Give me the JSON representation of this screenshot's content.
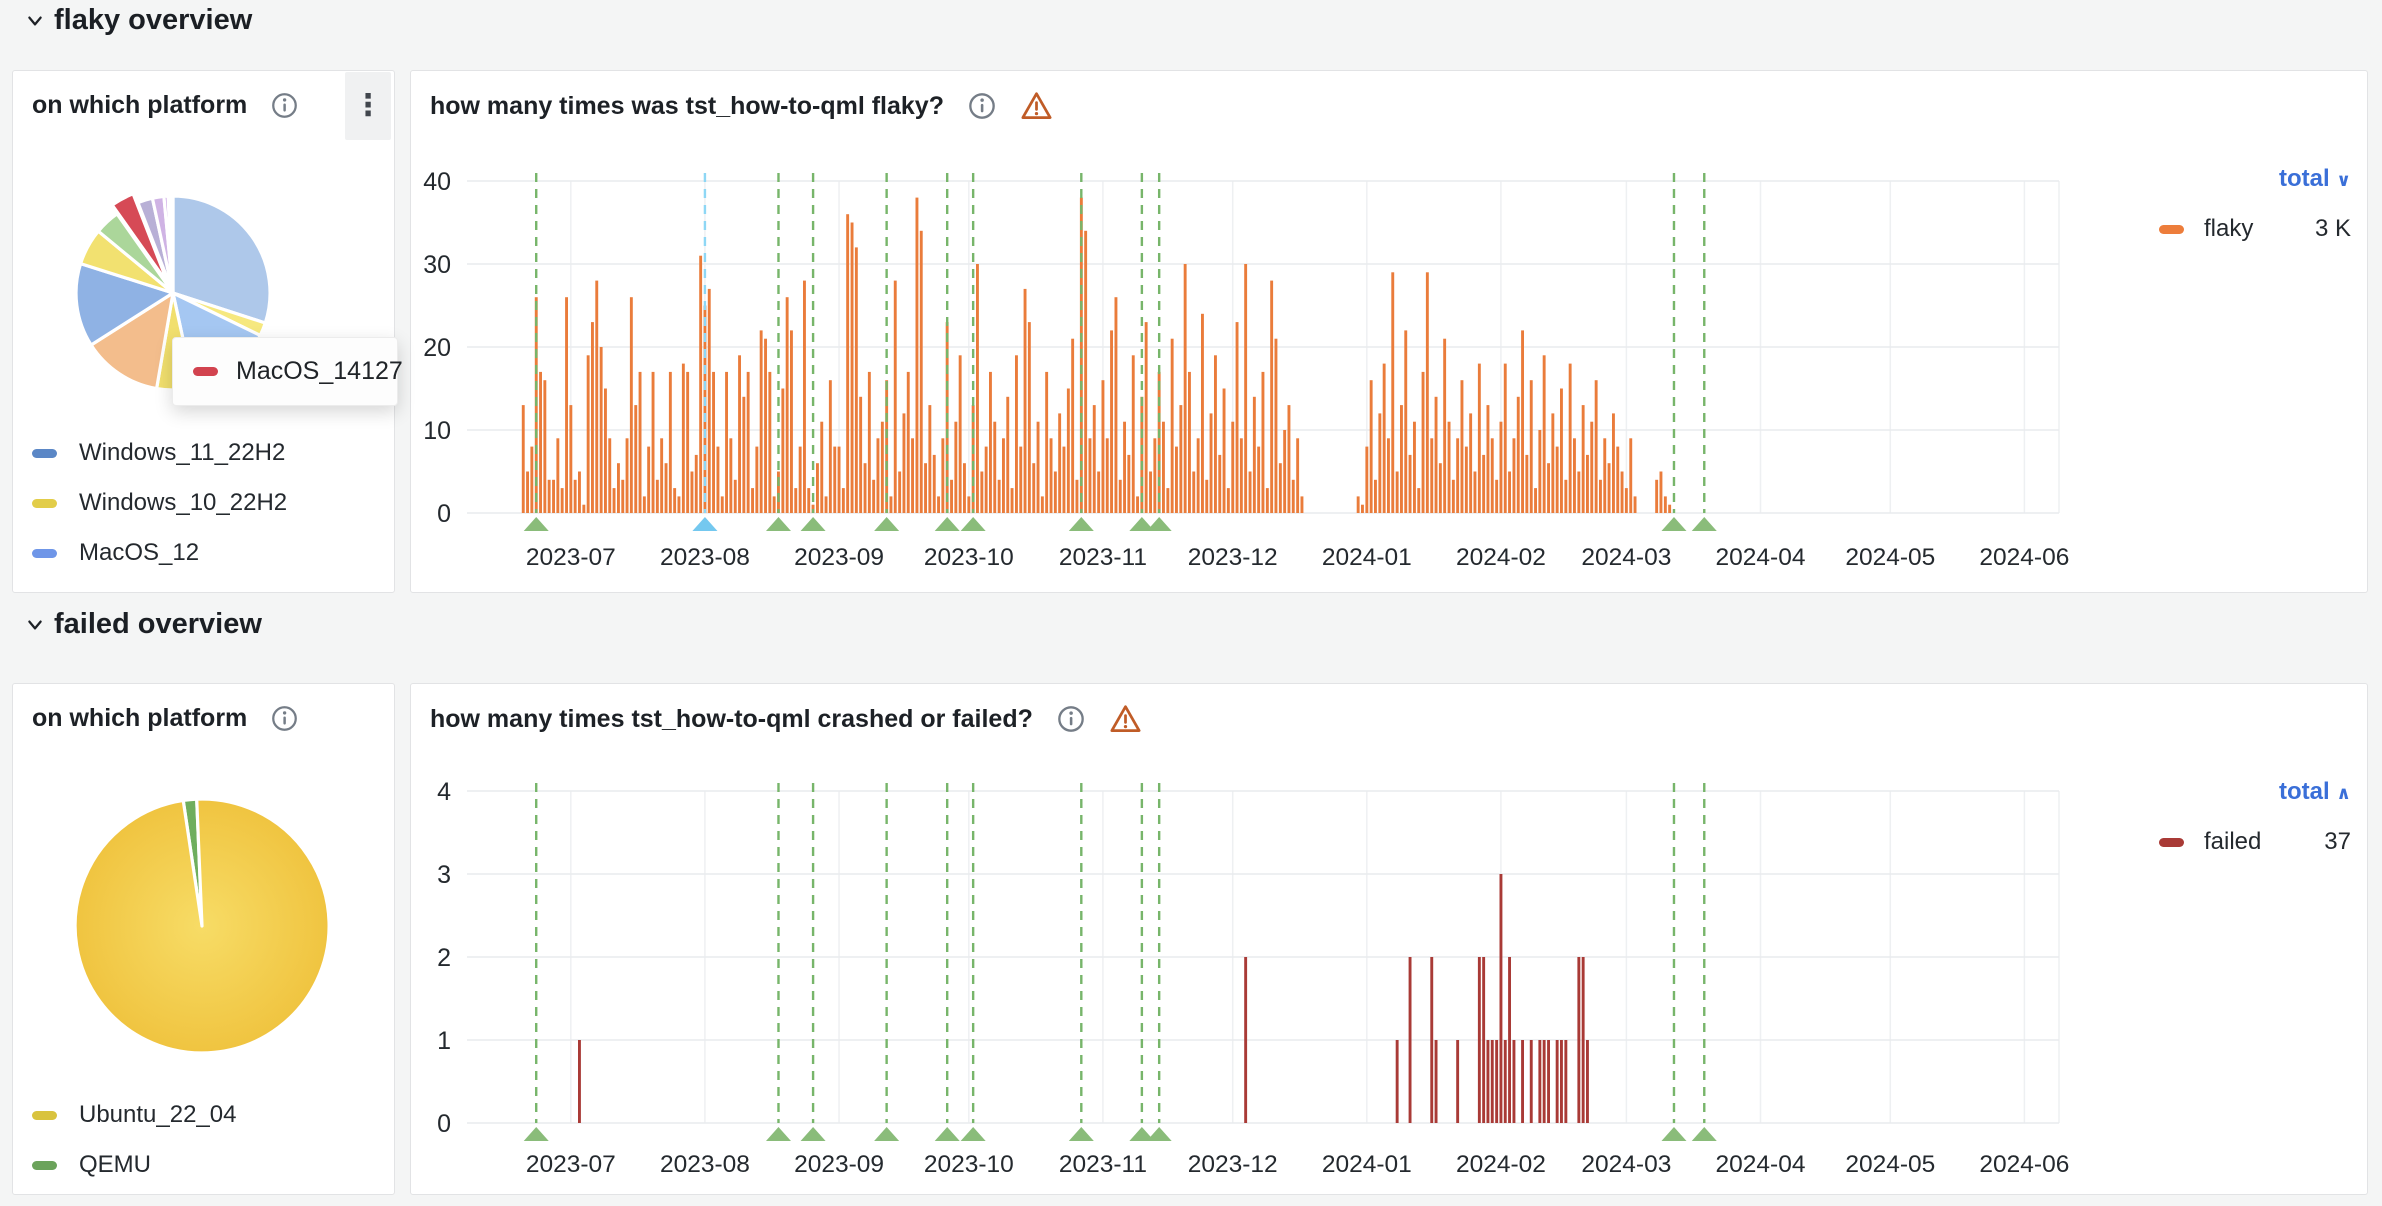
{
  "sections": [
    {
      "title": "flaky overview"
    },
    {
      "title": "failed overview"
    }
  ],
  "panels": {
    "flaky_pie": {
      "title": "on which platform",
      "legend": [
        {
          "label": "Windows_11_22H2",
          "color": "#5b87c6"
        },
        {
          "label": "Windows_10_22H2",
          "color": "#e2cd49"
        },
        {
          "label": "MacOS_12",
          "color": "#6f96e8"
        }
      ],
      "tooltip": {
        "label": "MacOS_14",
        "value": "127",
        "color": "#d2434f"
      }
    },
    "flaky_ts": {
      "title": "how many times was tst_how-to-qml flaky?",
      "legend": {
        "header": "total",
        "glyph": "∨",
        "rows": [
          {
            "label": "flaky",
            "value": "3 K",
            "color": "#ed7d3b"
          }
        ]
      }
    },
    "failed_pie": {
      "title": "on which platform",
      "legend": [
        {
          "label": "Ubuntu_22_04",
          "color": "#d9c33e"
        },
        {
          "label": "QEMU",
          "color": "#6ba35b"
        }
      ]
    },
    "failed_ts": {
      "title": "how many times tst_how-to-qml crashed or failed?",
      "legend": {
        "header": "total",
        "glyph": "∧",
        "rows": [
          {
            "label": "failed",
            "value": "37",
            "color": "#a93a36"
          }
        ]
      }
    }
  },
  "chart_data": [
    {
      "id": "flaky-pie",
      "type": "pie",
      "title": "on which platform",
      "slices": [
        {
          "color": "#aec8ea",
          "pct": 30.0
        },
        {
          "color": "#f6e87f",
          "pct": 2.2
        },
        {
          "color": "#a5c7f2",
          "pct": 14.4
        },
        {
          "color": "#f1df6e",
          "pct": 6.1
        },
        {
          "color": "#f3bd8c",
          "pct": 13.3
        },
        {
          "color": "#8fb2e4",
          "pct": 13.9
        },
        {
          "color": "#f2e170",
          "pct": 6.1
        },
        {
          "color": "#abd69a",
          "pct": 4.2
        },
        {
          "label": "MacOS_14",
          "color": "#d64a56",
          "pct": 3.9,
          "pop": true
        },
        {
          "color": "#b8b0d6",
          "pct": 2.5
        },
        {
          "color": "#cfb3e4",
          "pct": 1.9
        },
        {
          "color": "#c9a1e3",
          "pct": 0.7
        },
        {
          "color": "#cd8068",
          "pct": 0.5
        },
        {
          "color": "#79c26a",
          "pct": 0.3
        }
      ]
    },
    {
      "id": "flaky-ts",
      "type": "bar",
      "title": "how many times was tst_how-to-qml flaky?",
      "ylabel": "",
      "ylim": [
        0,
        40
      ],
      "y_ticks": [
        0,
        10,
        20,
        30,
        40
      ],
      "x_domain": {
        "start": "2023-06-07",
        "end": "2024-06-09"
      },
      "x_ticks": [
        "2023-07",
        "2023-08",
        "2023-09",
        "2023-10",
        "2023-11",
        "2023-12",
        "2024-01",
        "2024-02",
        "2024-03",
        "2024-04",
        "2024-05",
        "2024-06"
      ],
      "bar_color": "#ea7c3b",
      "start_date": "2023-06-20",
      "values": [
        13,
        5,
        8,
        26,
        17,
        16,
        4,
        4,
        9,
        3,
        26,
        13,
        4,
        5,
        1,
        19,
        23,
        28,
        20,
        15,
        9,
        3,
        6,
        4,
        9,
        26,
        13,
        17,
        2,
        8,
        17,
        4,
        9,
        6,
        17,
        3,
        2,
        18,
        17,
        5,
        7,
        31,
        25,
        27,
        17,
        8,
        2,
        17,
        9,
        4,
        19,
        14,
        17,
        3,
        8,
        22,
        21,
        17,
        2,
        5,
        15,
        26,
        22,
        3,
        8,
        28,
        3,
        1,
        6,
        11,
        2,
        16,
        8,
        8,
        3,
        36,
        35,
        32,
        14,
        6,
        17,
        4,
        9,
        11,
        16,
        2,
        28,
        5,
        12,
        17,
        9,
        38,
        34,
        6,
        13,
        7,
        2,
        9,
        23,
        4,
        11,
        19,
        6,
        2,
        13,
        30,
        5,
        8,
        17,
        11,
        4,
        9,
        14,
        3,
        19,
        8,
        27,
        23,
        6,
        11,
        2,
        17,
        9,
        5,
        12,
        8,
        15,
        21,
        4,
        38,
        34,
        9,
        13,
        5,
        16,
        9,
        22,
        26,
        4,
        11,
        7,
        19,
        2,
        14,
        23,
        5,
        9,
        17,
        11,
        3,
        21,
        8,
        13,
        30,
        17,
        5,
        9,
        24,
        4,
        12,
        19,
        7,
        15,
        3,
        11,
        23,
        9,
        30,
        5,
        14,
        8,
        17,
        3,
        28,
        21,
        6,
        10,
        13,
        4,
        9,
        2,
        0,
        0,
        0,
        0,
        0,
        0,
        0,
        0,
        0,
        0,
        0,
        0,
        2,
        1,
        8,
        16,
        4,
        12,
        18,
        9,
        29,
        5,
        13,
        22,
        7,
        11,
        3,
        17,
        29,
        9,
        14,
        6,
        21,
        11,
        4,
        9,
        16,
        8,
        12,
        5,
        18,
        7,
        13,
        9,
        4,
        11,
        18,
        5,
        9,
        14,
        22,
        7,
        16,
        3,
        10,
        19,
        6,
        12,
        8,
        15,
        4,
        18,
        9,
        5,
        13,
        7,
        11,
        16,
        4,
        9,
        6,
        12,
        8,
        5,
        3,
        9,
        2,
        0,
        0,
        0,
        0,
        4,
        5,
        2,
        1
      ],
      "series_total": "3 K",
      "annotation_colors": {
        "green": {
          "line": "#77b56a",
          "marker": "#8abc7a"
        },
        "blue": {
          "line": "#8ed7f5",
          "marker": "#74c8ef"
        }
      },
      "annotations": [
        {
          "date": "2023-06-23",
          "kind": "green"
        },
        {
          "date": "2023-08-01",
          "kind": "blue"
        },
        {
          "date": "2023-08-18",
          "kind": "green"
        },
        {
          "date": "2023-08-26",
          "kind": "green"
        },
        {
          "date": "2023-09-12",
          "kind": "green"
        },
        {
          "date": "2023-09-26",
          "kind": "green"
        },
        {
          "date": "2023-10-02",
          "kind": "green"
        },
        {
          "date": "2023-10-27",
          "kind": "green"
        },
        {
          "date": "2023-11-10",
          "kind": "green"
        },
        {
          "date": "2023-11-14",
          "kind": "green"
        },
        {
          "date": "2024-03-12",
          "kind": "green"
        },
        {
          "date": "2024-03-19",
          "kind": "green"
        }
      ],
      "legend_position": "right"
    },
    {
      "id": "failed-pie",
      "type": "pie",
      "title": "on which platform",
      "rotate_deg": -8.5,
      "slices": [
        {
          "label": "QEMU",
          "color": "#6fae5e",
          "pct": 1.7
        },
        {
          "label": "Ubuntu_22_04",
          "color": "#f0c440",
          "color_center": "#f7dc66",
          "pct": 98.3
        }
      ]
    },
    {
      "id": "failed-ts",
      "type": "bar",
      "title": "how many times tst_how-to-qml crashed or failed?",
      "ylabel": "",
      "ylim": [
        0,
        4
      ],
      "y_ticks": [
        0,
        1,
        2,
        3,
        4
      ],
      "x_domain": {
        "start": "2023-06-07",
        "end": "2024-06-09"
      },
      "x_ticks": [
        "2023-07",
        "2023-08",
        "2023-09",
        "2023-10",
        "2023-11",
        "2023-12",
        "2024-01",
        "2024-02",
        "2024-03",
        "2024-04",
        "2024-05",
        "2024-06"
      ],
      "bar_color": "#a93a36",
      "events": [
        {
          "date": "2023-07-03",
          "value": 1
        },
        {
          "date": "2023-12-04",
          "value": 2
        },
        {
          "date": "2024-01-08",
          "value": 1
        },
        {
          "date": "2024-01-11",
          "value": 2
        },
        {
          "date": "2024-01-16",
          "value": 2
        },
        {
          "date": "2024-01-17",
          "value": 1
        },
        {
          "date": "2024-01-22",
          "value": 1
        },
        {
          "date": "2024-01-27",
          "value": 2
        },
        {
          "date": "2024-01-28",
          "value": 2
        },
        {
          "date": "2024-01-29",
          "value": 1
        },
        {
          "date": "2024-01-30",
          "value": 1
        },
        {
          "date": "2024-01-31",
          "value": 1
        },
        {
          "date": "2024-02-01",
          "value": 3
        },
        {
          "date": "2024-02-02",
          "value": 1
        },
        {
          "date": "2024-02-03",
          "value": 2
        },
        {
          "date": "2024-02-04",
          "value": 1
        },
        {
          "date": "2024-02-06",
          "value": 1
        },
        {
          "date": "2024-02-08",
          "value": 1
        },
        {
          "date": "2024-02-10",
          "value": 1
        },
        {
          "date": "2024-02-11",
          "value": 1
        },
        {
          "date": "2024-02-12",
          "value": 1
        },
        {
          "date": "2024-02-14",
          "value": 1
        },
        {
          "date": "2024-02-15",
          "value": 1
        },
        {
          "date": "2024-02-16",
          "value": 1
        },
        {
          "date": "2024-02-19",
          "value": 2
        },
        {
          "date": "2024-02-20",
          "value": 2
        },
        {
          "date": "2024-02-21",
          "value": 1
        }
      ],
      "series_total": "37",
      "annotation_colors": {
        "green": {
          "line": "#77b56a",
          "marker": "#8abc7a"
        }
      },
      "annotations": [
        {
          "date": "2023-06-23",
          "kind": "green"
        },
        {
          "date": "2023-08-18",
          "kind": "green"
        },
        {
          "date": "2023-08-26",
          "kind": "green"
        },
        {
          "date": "2023-09-12",
          "kind": "green"
        },
        {
          "date": "2023-09-26",
          "kind": "green"
        },
        {
          "date": "2023-10-02",
          "kind": "green"
        },
        {
          "date": "2023-10-27",
          "kind": "green"
        },
        {
          "date": "2023-11-10",
          "kind": "green"
        },
        {
          "date": "2023-11-14",
          "kind": "green"
        },
        {
          "date": "2024-03-12",
          "kind": "green"
        },
        {
          "date": "2024-03-19",
          "kind": "green"
        }
      ],
      "legend_position": "right"
    }
  ]
}
